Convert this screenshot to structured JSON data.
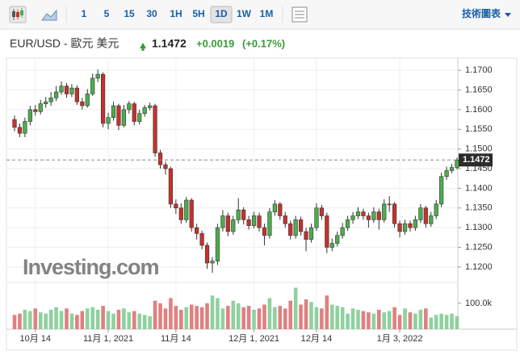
{
  "toolbar": {
    "intervals": [
      "1",
      "5",
      "15",
      "30",
      "1H",
      "5H",
      "1D",
      "1W",
      "1M"
    ],
    "selected": 6,
    "menu": "技術圖表"
  },
  "chart_data": {
    "type": "candlestick",
    "title": "EUR/USD - 歐元 美元",
    "last_price": 1.1472,
    "change": "+0.0019",
    "change_pct": "(+0.17%)",
    "watermark": "Investing.com",
    "categories": [
      null,
      null,
      null,
      null,
      "10月 14",
      null,
      null,
      null,
      null,
      null,
      null,
      null,
      null,
      null,
      null,
      null,
      null,
      null,
      "11月 1, 2021",
      null,
      null,
      null,
      null,
      null,
      null,
      null,
      null,
      null,
      null,
      null,
      null,
      "11月 14",
      null,
      null,
      null,
      null,
      null,
      null,
      null,
      null,
      null,
      null,
      null,
      null,
      null,
      null,
      "12月 1, 2021",
      null,
      null,
      null,
      null,
      null,
      null,
      null,
      null,
      null,
      null,
      null,
      "12月 14",
      null,
      null,
      null,
      null,
      null,
      null,
      null,
      null,
      null,
      null,
      null,
      null,
      null,
      null,
      null,
      "1月 3, 2022",
      null,
      null,
      null,
      null,
      null,
      null,
      null,
      null,
      null,
      null,
      null
    ],
    "open": [
      1.1575,
      1.1555,
      1.154,
      1.157,
      1.16,
      1.1595,
      1.1615,
      1.162,
      1.163,
      1.1645,
      1.166,
      1.164,
      1.1655,
      1.162,
      1.161,
      1.164,
      1.168,
      1.169,
      1.1565,
      1.158,
      1.161,
      1.156,
      1.16,
      1.1615,
      1.157,
      1.159,
      1.1605,
      1.161,
      1.149,
      1.146,
      1.145,
      1.136,
      1.135,
      1.132,
      1.137,
      1.13,
      1.1285,
      1.1255,
      1.121,
      1.1215,
      1.13,
      1.133,
      1.129,
      1.132,
      1.1345,
      1.132,
      1.1305,
      1.133,
      1.13,
      1.128,
      1.134,
      1.136,
      1.133,
      1.131,
      1.128,
      1.132,
      1.129,
      1.127,
      1.13,
      1.135,
      1.133,
      1.125,
      1.126,
      1.128,
      1.13,
      1.132,
      1.133,
      1.134,
      1.133,
      1.132,
      1.134,
      1.132,
      1.136,
      1.136,
      1.131,
      1.129,
      1.131,
      1.13,
      1.132,
      1.135,
      1.131,
      1.133,
      1.136,
      1.143,
      1.1445,
      1.1453
    ],
    "high": [
      1.1585,
      1.1565,
      1.158,
      1.161,
      1.1612,
      1.1625,
      1.1632,
      1.1645,
      1.166,
      1.1672,
      1.1668,
      1.1665,
      1.1662,
      1.163,
      1.1652,
      1.1692,
      1.1702,
      1.1695,
      1.1592,
      1.162,
      1.1615,
      1.1612,
      1.1622,
      1.162,
      1.16,
      1.1612,
      1.1618,
      1.1615,
      1.1498,
      1.1468,
      1.1455,
      1.1372,
      1.1362,
      1.1378,
      1.1375,
      1.131,
      1.1292,
      1.1262,
      1.1225,
      1.131,
      1.1345,
      1.1338,
      1.133,
      1.1375,
      1.1352,
      1.133,
      1.134,
      1.1338,
      1.131,
      1.135,
      1.137,
      1.1365,
      1.134,
      1.1318,
      1.133,
      1.1328,
      1.13,
      1.131,
      1.1362,
      1.1358,
      1.1338,
      1.1272,
      1.129,
      1.1312,
      1.133,
      1.134,
      1.1352,
      1.1348,
      1.1338,
      1.1352,
      1.1348,
      1.1372,
      1.138,
      1.1365,
      1.1318,
      1.132,
      1.1318,
      1.133,
      1.136,
      1.1355,
      1.134,
      1.137,
      1.144,
      1.1455,
      1.1462,
      1.1478
    ],
    "low": [
      1.1545,
      1.153,
      1.153,
      1.156,
      1.1585,
      1.1588,
      1.1605,
      1.161,
      1.1622,
      1.1638,
      1.163,
      1.1632,
      1.1612,
      1.16,
      1.1605,
      1.1635,
      1.167,
      1.1555,
      1.155,
      1.1572,
      1.1548,
      1.1555,
      1.159,
      1.156,
      1.1562,
      1.1582,
      1.1598,
      1.148,
      1.145,
      1.1435,
      1.135,
      1.1335,
      1.131,
      1.1312,
      1.129,
      1.127,
      1.1245,
      1.1195,
      1.1185,
      1.1205,
      1.129,
      1.1278,
      1.1282,
      1.131,
      1.1308,
      1.1295,
      1.1298,
      1.129,
      1.1255,
      1.1272,
      1.133,
      1.132,
      1.13,
      1.127,
      1.1272,
      1.128,
      1.124,
      1.1262,
      1.1292,
      1.132,
      1.1235,
      1.124,
      1.1252,
      1.1272,
      1.1292,
      1.131,
      1.1322,
      1.132,
      1.13,
      1.1312,
      1.1295,
      1.1312,
      1.134,
      1.13,
      1.1275,
      1.1282,
      1.129,
      1.1292,
      1.1312,
      1.13,
      1.1302,
      1.1322,
      1.1352,
      1.1422,
      1.1438,
      1.1448
    ],
    "close": [
      1.1555,
      1.154,
      1.157,
      1.16,
      1.1595,
      1.1615,
      1.162,
      1.163,
      1.1645,
      1.166,
      1.164,
      1.1655,
      1.162,
      1.161,
      1.164,
      1.168,
      1.169,
      1.1565,
      1.158,
      1.161,
      1.156,
      1.16,
      1.1615,
      1.157,
      1.159,
      1.1605,
      1.161,
      1.149,
      1.146,
      1.145,
      1.136,
      1.135,
      1.132,
      1.137,
      1.13,
      1.1285,
      1.1255,
      1.121,
      1.1215,
      1.13,
      1.133,
      1.129,
      1.132,
      1.1345,
      1.132,
      1.1305,
      1.133,
      1.13,
      1.128,
      1.134,
      1.136,
      1.133,
      1.131,
      1.128,
      1.132,
      1.129,
      1.127,
      1.13,
      1.135,
      1.133,
      1.125,
      1.126,
      1.128,
      1.13,
      1.132,
      1.133,
      1.134,
      1.133,
      1.132,
      1.134,
      1.132,
      1.136,
      1.136,
      1.131,
      1.129,
      1.131,
      1.13,
      1.132,
      1.135,
      1.131,
      1.133,
      1.136,
      1.143,
      1.1445,
      1.1453,
      1.1472
    ],
    "volume": [
      55000,
      60000,
      75000,
      70000,
      80000,
      65000,
      60000,
      75000,
      85000,
      70000,
      80000,
      60000,
      55000,
      70000,
      80000,
      85000,
      75000,
      90000,
      70000,
      60000,
      75000,
      80000,
      65000,
      70000,
      60000,
      55000,
      50000,
      110000,
      100000,
      80000,
      120000,
      90000,
      75000,
      85000,
      95000,
      90000,
      85000,
      100000,
      130000,
      120000,
      80000,
      90000,
      110000,
      100000,
      85000,
      90000,
      75000,
      80000,
      95000,
      120000,
      85000,
      90000,
      80000,
      110000,
      160000,
      95000,
      115000,
      105000,
      85000,
      80000,
      130000,
      95000,
      90000,
      85000,
      60000,
      80000,
      75000,
      70000,
      65000,
      60000,
      75000,
      65000,
      70000,
      85000,
      55000,
      80000,
      65000,
      60000,
      75000,
      80000,
      45000,
      55000,
      60000,
      55000,
      60000,
      50000
    ],
    "ylim": [
      1.1171,
      1.1725
    ],
    "yticks": [
      {
        "value": 1.12,
        "label": "1.1200"
      },
      {
        "value": 1.125,
        "label": "1.1250"
      },
      {
        "value": 1.13,
        "label": "1.1300"
      },
      {
        "value": 1.135,
        "label": "1.1350"
      },
      {
        "value": 1.14,
        "label": "1.1400"
      },
      {
        "value": 1.145,
        "label": "1.1450"
      },
      {
        "value": 1.15,
        "label": "1.1500"
      },
      {
        "value": 1.155,
        "label": "1.1550"
      },
      {
        "value": 1.16,
        "label": "1.1600"
      },
      {
        "value": 1.165,
        "label": "1.1650"
      },
      {
        "value": 1.17,
        "label": "1.1700"
      }
    ],
    "vlim": [
      0,
      165000
    ],
    "vticks": [
      {
        "value": 100000,
        "label": "100.0k"
      }
    ],
    "grid": true,
    "up_color": "#4cae4c",
    "down_color": "#c9302c",
    "volume_up_color": "#8fd19e",
    "volume_down_color": "#e08080"
  }
}
